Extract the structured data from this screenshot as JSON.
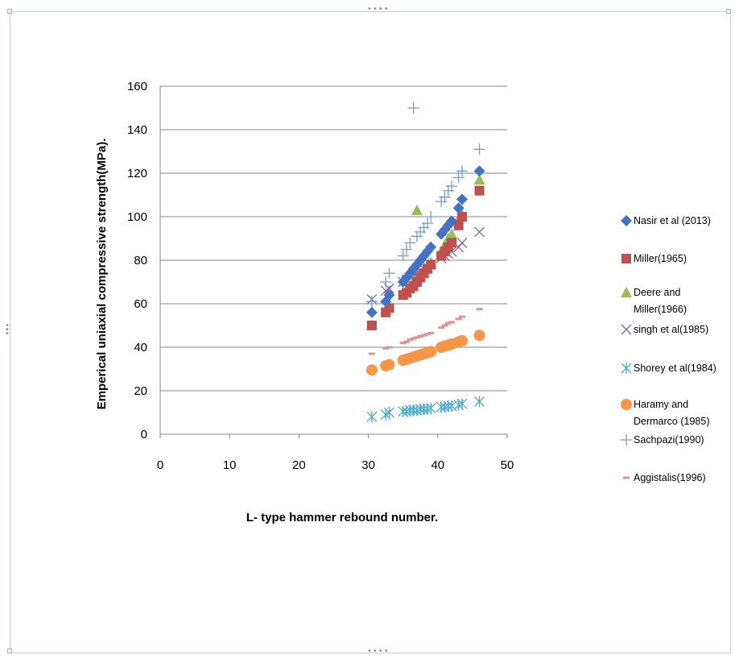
{
  "chart_data": {
    "type": "scatter",
    "title": "",
    "xlabel": "L- type hammer rebound number.",
    "ylabel": "Emperical uniaxial compressive strength(MPa).",
    "xlim": [
      0,
      50
    ],
    "ylim": [
      0,
      160
    ],
    "x_ticks": [
      "0",
      "10",
      "20",
      "30",
      "40",
      "50"
    ],
    "y_ticks": [
      "0",
      "20",
      "40",
      "60",
      "80",
      "100",
      "120",
      "140",
      "160"
    ],
    "grid": "horizontal",
    "legend_position": "right",
    "series": [
      {
        "name": "Nasir et al (2013)",
        "marker": "diamond",
        "color": "#4472C4",
        "points": [
          [
            30.5,
            56
          ],
          [
            32.5,
            61
          ],
          [
            33,
            64
          ],
          [
            35,
            70
          ],
          [
            35.5,
            72
          ],
          [
            36,
            74
          ],
          [
            36.5,
            76
          ],
          [
            37,
            78
          ],
          [
            37.5,
            80
          ],
          [
            38,
            82
          ],
          [
            38.5,
            84
          ],
          [
            39,
            86
          ],
          [
            40.5,
            92
          ],
          [
            41,
            94
          ],
          [
            41.5,
            96
          ],
          [
            42,
            98
          ],
          [
            43,
            104
          ],
          [
            43.5,
            108
          ],
          [
            46,
            121
          ]
        ]
      },
      {
        "name": "Miller(1965)",
        "marker": "square",
        "color": "#C0504D",
        "points": [
          [
            30.5,
            50
          ],
          [
            32.5,
            56
          ],
          [
            33,
            58
          ],
          [
            35,
            64
          ],
          [
            35.5,
            65
          ],
          [
            36,
            67
          ],
          [
            36.5,
            68
          ],
          [
            37,
            70
          ],
          [
            37.5,
            72
          ],
          [
            38,
            74
          ],
          [
            38.5,
            76
          ],
          [
            39,
            78
          ],
          [
            40.5,
            82
          ],
          [
            41,
            84
          ],
          [
            41.5,
            86
          ],
          [
            42,
            88
          ],
          [
            43,
            96
          ],
          [
            43.5,
            100
          ],
          [
            46,
            112
          ]
        ]
      },
      {
        "name": "Deere and Miller(1966)",
        "legend_lines": [
          "Deere and",
          "Miller(1966)"
        ],
        "marker": "triangle",
        "color": "#9BBB59",
        "points": [
          [
            30.5,
            50
          ],
          [
            32.5,
            57
          ],
          [
            33,
            59
          ],
          [
            35,
            64
          ],
          [
            35.5,
            66
          ],
          [
            36,
            68
          ],
          [
            36.5,
            71
          ],
          [
            37,
            103
          ],
          [
            37.5,
            73
          ],
          [
            38,
            75
          ],
          [
            38.5,
            77
          ],
          [
            39,
            79
          ],
          [
            40.5,
            84
          ],
          [
            41,
            87
          ],
          [
            41.5,
            90
          ],
          [
            42,
            92
          ],
          [
            43,
            99
          ],
          [
            43.5,
            101
          ],
          [
            46,
            117
          ]
        ]
      },
      {
        "name": "singh et al(1985)",
        "marker": "x",
        "color": "#8064A2",
        "points": [
          [
            30.5,
            62
          ],
          [
            32.5,
            66
          ],
          [
            33,
            67
          ],
          [
            35,
            70
          ],
          [
            35.5,
            71
          ],
          [
            36,
            72
          ],
          [
            36.5,
            73
          ],
          [
            37,
            74
          ],
          [
            37.5,
            75
          ],
          [
            38,
            76
          ],
          [
            38.5,
            77
          ],
          [
            39,
            78
          ],
          [
            40.5,
            81
          ],
          [
            41,
            82
          ],
          [
            41.5,
            83
          ],
          [
            42,
            84
          ],
          [
            43,
            86
          ],
          [
            43.5,
            88
          ],
          [
            46,
            93
          ]
        ]
      },
      {
        "name": "Shorey et al(1984)",
        "marker": "asterisk",
        "color": "#4BACC6",
        "points": [
          [
            30.5,
            8
          ],
          [
            32.5,
            9
          ],
          [
            33,
            10
          ],
          [
            35,
            10.5
          ],
          [
            35.5,
            10.5
          ],
          [
            36,
            11
          ],
          [
            36.5,
            11
          ],
          [
            37,
            11
          ],
          [
            37.5,
            11.5
          ],
          [
            38,
            11.5
          ],
          [
            38.5,
            11.5
          ],
          [
            39,
            12
          ],
          [
            40.5,
            12.5
          ],
          [
            41,
            12.5
          ],
          [
            41.5,
            13
          ],
          [
            42,
            13
          ],
          [
            43,
            13.5
          ],
          [
            43.5,
            14
          ],
          [
            46,
            15
          ]
        ]
      },
      {
        "name": "Haramy and Dermarco (1985)",
        "legend_lines": [
          "Haramy and",
          "Dermarco (1985)"
        ],
        "marker": "circle",
        "color": "#F79646",
        "points": [
          [
            30.5,
            29.5
          ],
          [
            32.5,
            31.5
          ],
          [
            33,
            32
          ],
          [
            35,
            34
          ],
          [
            35.5,
            34.5
          ],
          [
            36,
            35
          ],
          [
            36.5,
            35.5
          ],
          [
            37,
            36
          ],
          [
            37.5,
            36.5
          ],
          [
            38,
            37
          ],
          [
            38.5,
            37.5
          ],
          [
            39,
            38
          ],
          [
            40.5,
            40
          ],
          [
            41,
            40.5
          ],
          [
            41.5,
            41
          ],
          [
            42,
            41.5
          ],
          [
            43,
            42.5
          ],
          [
            43.5,
            43
          ],
          [
            46,
            45.5
          ]
        ]
      },
      {
        "name": "Sachpazi(1990)",
        "marker": "plus",
        "color": "#7E9BC8",
        "points": [
          [
            30.5,
            61
          ],
          [
            32.5,
            70
          ],
          [
            33,
            74
          ],
          [
            35,
            82
          ],
          [
            35.5,
            85
          ],
          [
            36,
            88
          ],
          [
            36.5,
            150
          ],
          [
            37,
            91
          ],
          [
            37.5,
            93
          ],
          [
            38,
            95
          ],
          [
            38.5,
            97
          ],
          [
            39,
            100
          ],
          [
            40.5,
            107
          ],
          [
            41,
            109
          ],
          [
            41.5,
            112
          ],
          [
            42,
            114
          ],
          [
            43,
            118
          ],
          [
            43.5,
            121
          ],
          [
            46,
            131
          ]
        ]
      },
      {
        "name": "Aggistalis(1996)",
        "marker": "dash",
        "color": "#D99694",
        "points": [
          [
            30.5,
            37
          ],
          [
            32.5,
            39.5
          ],
          [
            33,
            40
          ],
          [
            35,
            42
          ],
          [
            35.5,
            42.5
          ],
          [
            36,
            43.5
          ],
          [
            36.5,
            44
          ],
          [
            37,
            44.5
          ],
          [
            37.5,
            45
          ],
          [
            38,
            45.5
          ],
          [
            38.5,
            46
          ],
          [
            39,
            46.5
          ],
          [
            40.5,
            49
          ],
          [
            41,
            50
          ],
          [
            41.5,
            51
          ],
          [
            42,
            51.5
          ],
          [
            43,
            53
          ],
          [
            43.5,
            54
          ],
          [
            46,
            57.5
          ]
        ]
      }
    ]
  }
}
